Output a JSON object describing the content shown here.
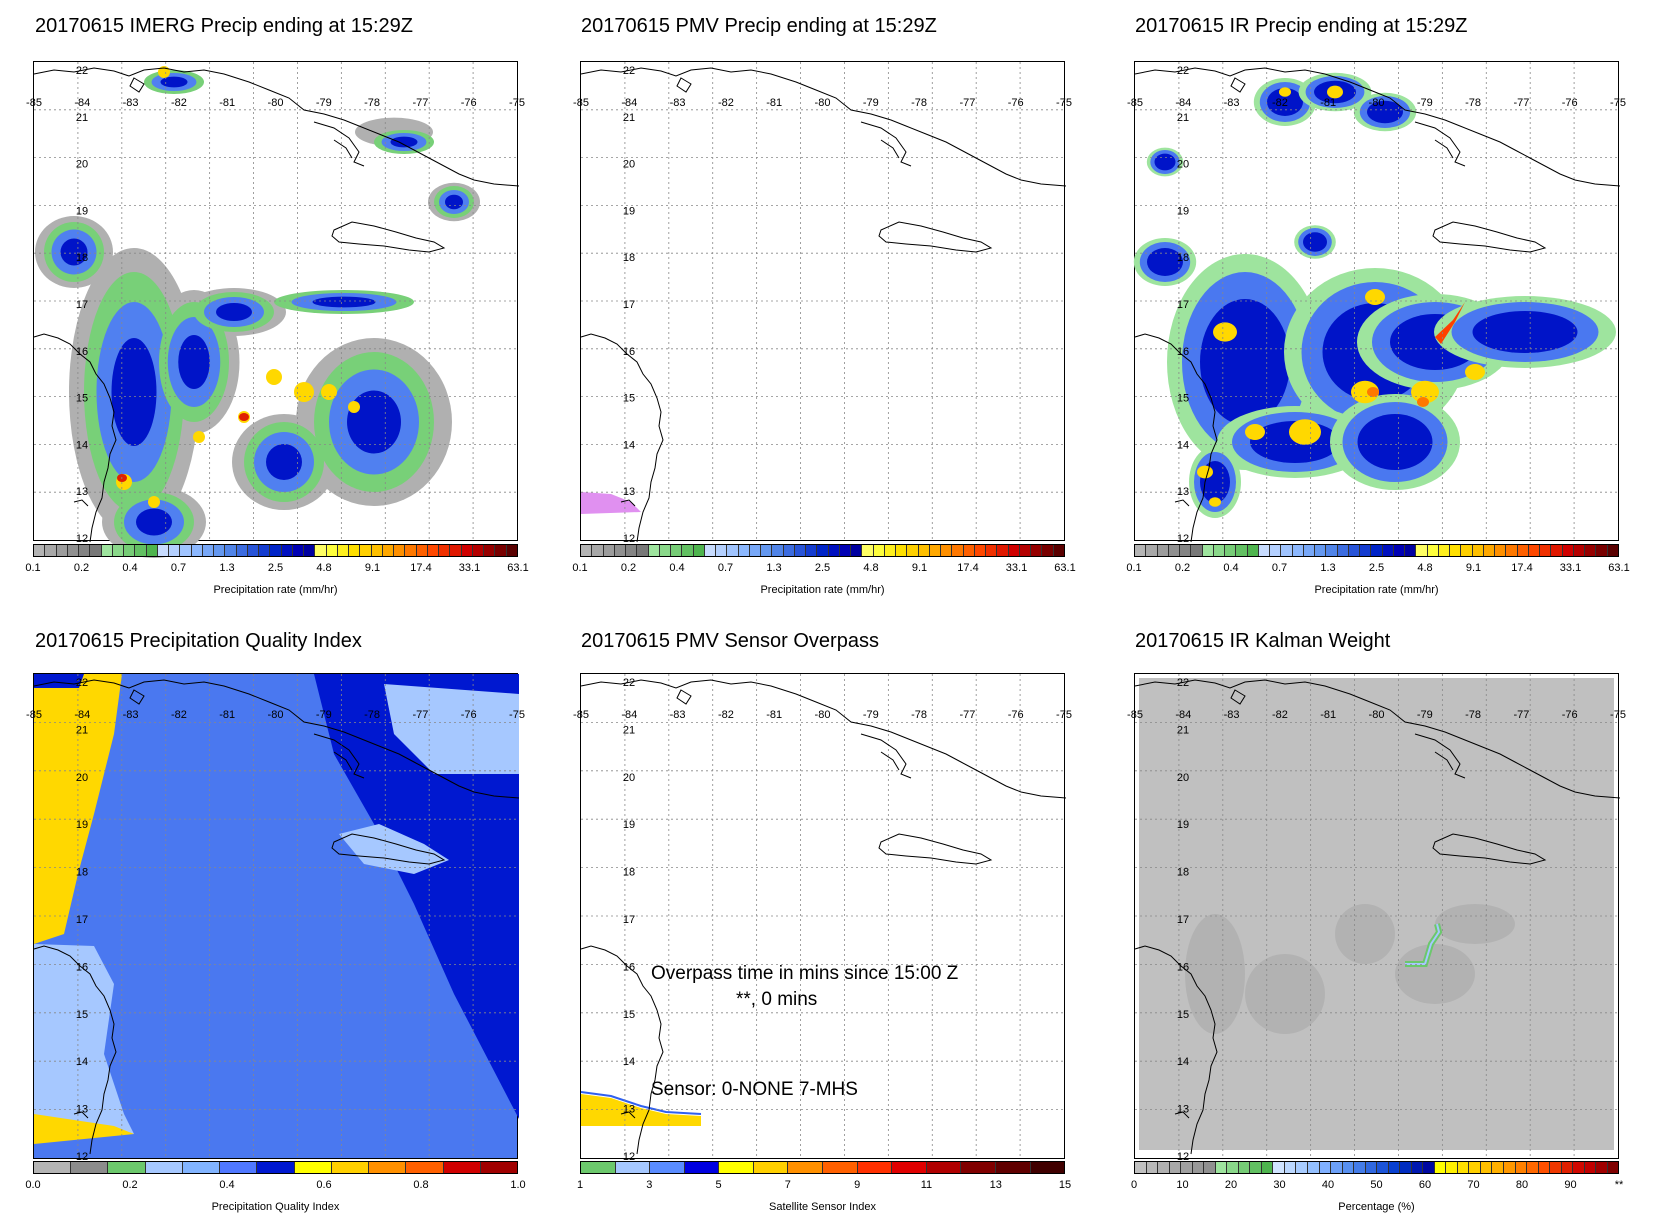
{
  "panels": [
    {
      "title": "20170615 IMERG Precip ending at 15:29Z",
      "kind": "precip",
      "colorbar_label": "Precipitation rate (mm/hr)"
    },
    {
      "title": "20170615 PMV Precip ending at 15:29Z",
      "kind": "pmv",
      "colorbar_label": "Precipitation rate (mm/hr)"
    },
    {
      "title": "20170615 IR Precip ending at 15:29Z",
      "kind": "ir",
      "colorbar_label": "Precipitation rate (mm/hr)"
    },
    {
      "title": "20170615 Precipitation Quality Index",
      "kind": "quality",
      "colorbar_label": "Precipitation Quality Index"
    },
    {
      "title": "20170615 PMV Sensor Overpass",
      "kind": "overpass",
      "colorbar_label": "Satellite Sensor Index"
    },
    {
      "title": "20170615 IR Kalman Weight",
      "kind": "kalman",
      "colorbar_label": "Percentage (%)"
    }
  ],
  "map": {
    "lon_labels": [
      "-85",
      "-84",
      "-83",
      "-82",
      "-81",
      "-80",
      "-79",
      "-78",
      "-77",
      "-76",
      "-75"
    ],
    "lat_labels": [
      "22",
      "21",
      "20",
      "19",
      "18",
      "17",
      "16",
      "15",
      "14",
      "13",
      "12"
    ]
  },
  "overpass": {
    "line1": "Overpass time in mins since 15:00 Z",
    "line2": "**, 0 mins",
    "sensor": "Sensor:   0-NONE  7-MHS"
  },
  "colorbars": {
    "precip": {
      "ticks": [
        "0.1",
        "0.2",
        "0.4",
        "0.7",
        "1.3",
        "2.5",
        "4.8",
        "9.1",
        "17.4",
        "33.1",
        "63.1"
      ],
      "colors": [
        "#b4b4b4",
        "#a8a8a8",
        "#9c9c9c",
        "#909090",
        "#848484",
        "#787878",
        "#9ee49e",
        "#8ad88a",
        "#76cc76",
        "#62c062",
        "#4eb44e",
        "#c8dcff",
        "#b4d0ff",
        "#a0c4ff",
        "#8cb8ff",
        "#78a8f8",
        "#6498f0",
        "#5084e8",
        "#3c6ce0",
        "#2854d8",
        "#143cd0",
        "#0024c8",
        "#0010c0",
        "#0000b4",
        "#0000a0",
        "#ffff64",
        "#ffff3c",
        "#fff01e",
        "#ffe000",
        "#ffd000",
        "#ffc000",
        "#ffa800",
        "#ff9000",
        "#ff7800",
        "#ff6000",
        "#ff4800",
        "#f03000",
        "#e01800",
        "#d00000",
        "#b40000",
        "#960000",
        "#780000",
        "#5a0000"
      ]
    },
    "quality": {
      "ticks": [
        "0.0",
        "0.2",
        "0.4",
        "0.6",
        "0.8",
        "1.0"
      ],
      "colors": [
        "#b4b4b4",
        "#8c8c8c",
        "#6cc86c",
        "#a6c8ff",
        "#82b4ff",
        "#5078ff",
        "#0018d0",
        "#ffff00",
        "#ffd000",
        "#ff9000",
        "#ff6000",
        "#d00000",
        "#a00000"
      ]
    },
    "sensor": {
      "ticks": [
        "1",
        "3",
        "5",
        "7",
        "9",
        "11",
        "13",
        "15"
      ],
      "colors": [
        "#6cc86c",
        "#a6c8ff",
        "#5a8cff",
        "#0000e0",
        "#ffff00",
        "#ffd000",
        "#ff9000",
        "#ff6000",
        "#ff3000",
        "#e00000",
        "#b00000",
        "#800000",
        "#600000",
        "#400000"
      ]
    },
    "kalman": {
      "ticks": [
        "0",
        "10",
        "20",
        "30",
        "40",
        "50",
        "60",
        "70",
        "80",
        "90",
        "**"
      ],
      "colors": [
        "#c0c0c0",
        "#b8b8b8",
        "#b0b0b0",
        "#a8a8a8",
        "#a0a0a0",
        "#989898",
        "#909090",
        "#9ee49e",
        "#8ad88a",
        "#76cc76",
        "#62c062",
        "#4eb44e",
        "#d0e4ff",
        "#bcd8ff",
        "#a8ccff",
        "#94c0ff",
        "#80b0ff",
        "#6ca0f8",
        "#5890f0",
        "#447ce8",
        "#3068e0",
        "#1c54d8",
        "#0840d0",
        "#002cc0",
        "#0018b0",
        "#0008a0",
        "#ffff00",
        "#fff000",
        "#ffe000",
        "#ffd000",
        "#ffc000",
        "#ffb000",
        "#ff9800",
        "#ff8000",
        "#ff6800",
        "#ff5000",
        "#f03800",
        "#e02000",
        "#d00800",
        "#c00000",
        "#a00000",
        "#800000"
      ]
    }
  }
}
